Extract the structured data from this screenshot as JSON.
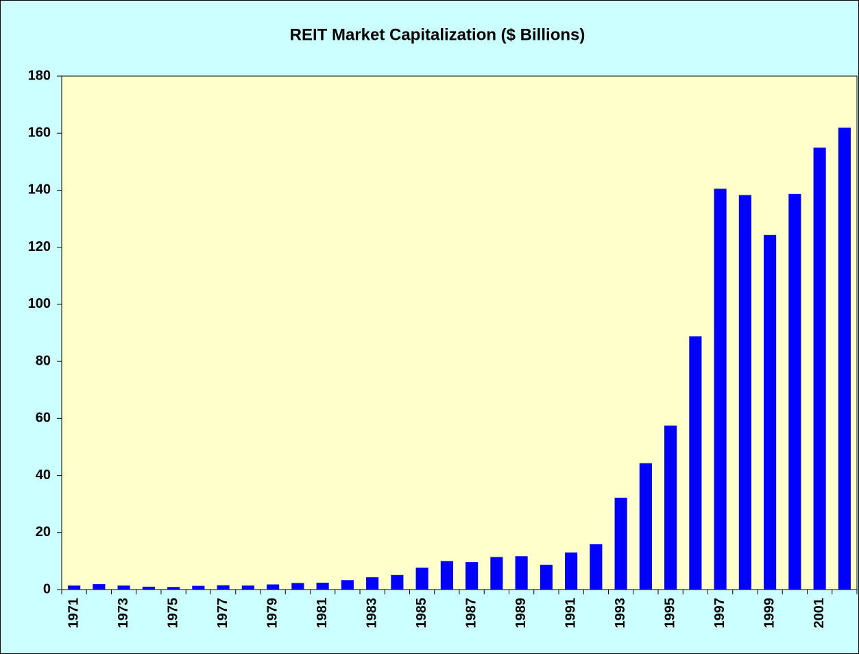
{
  "chart_data": {
    "type": "bar",
    "title": "REIT Market Capitalization ($ Billions)",
    "categories": [
      "1971",
      null,
      "1973",
      null,
      "1975",
      null,
      "1977",
      null,
      "1979",
      null,
      "1981",
      null,
      "1983",
      null,
      "1985",
      null,
      "1987",
      null,
      "1989",
      null,
      "1991",
      null,
      "1993",
      null,
      "1995",
      null,
      "1997",
      null,
      "1999",
      null,
      "2001",
      null
    ],
    "values": [
      1.4,
      1.9,
      1.4,
      1.0,
      0.9,
      1.3,
      1.5,
      1.4,
      1.8,
      2.3,
      2.4,
      3.3,
      4.3,
      5.1,
      7.7,
      10.0,
      9.6,
      11.4,
      11.7,
      8.7,
      13.0,
      15.9,
      32.2,
      44.3,
      57.5,
      88.8,
      140.5,
      138.3,
      124.3,
      138.7,
      154.9,
      161.9
    ],
    "color": "#0000ff",
    "ylim": [
      0,
      180
    ],
    "yticks": [
      0,
      20,
      40,
      60,
      80,
      100,
      120,
      140,
      160,
      180
    ],
    "grid": false
  }
}
